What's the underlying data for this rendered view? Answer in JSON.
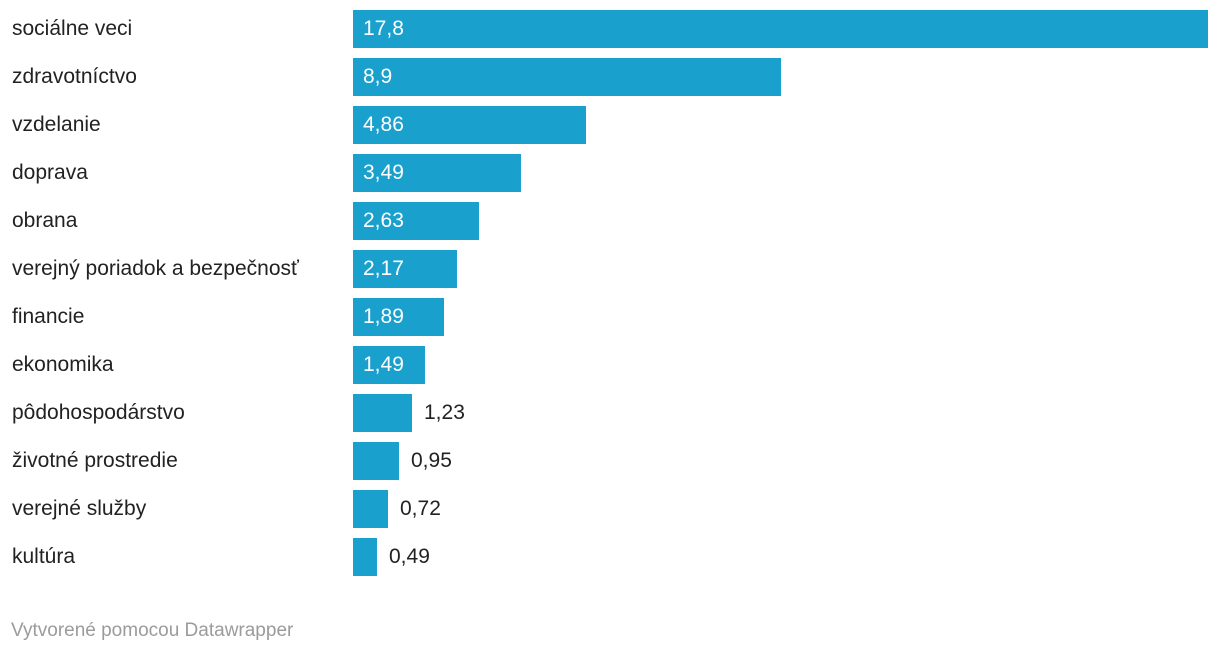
{
  "chart_data": {
    "type": "bar",
    "orientation": "horizontal",
    "title": "",
    "xlabel": "",
    "ylabel": "",
    "categories": [
      "sociálne veci",
      "zdravotníctvo",
      "vzdelanie",
      "doprava",
      "obrana",
      "verejný poriadok a bezpečnosť",
      "financie",
      "ekonomika",
      "pôdohospodárstvo",
      "životné prostredie",
      "verejné služby",
      "kultúra"
    ],
    "values": [
      17.8,
      8.9,
      4.86,
      3.49,
      2.63,
      2.17,
      1.89,
      1.49,
      1.23,
      0.95,
      0.72,
      0.49
    ],
    "value_labels": [
      "17,8",
      "8,9",
      "4,86",
      "3,49",
      "2,63",
      "2,17",
      "1,89",
      "1,49",
      "1,23",
      "0,95",
      "0,72",
      "0,49"
    ],
    "xlim": [
      0,
      17.8
    ],
    "grid": false,
    "legend": false,
    "colors": {
      "bar": "#1aa0cd",
      "value_inside": "#ffffff",
      "value_outside": "#222222",
      "category_text": "#222222"
    }
  },
  "footer": {
    "attribution": "Vytvorené pomocou Datawrapper",
    "color": "#9b9b9b"
  }
}
